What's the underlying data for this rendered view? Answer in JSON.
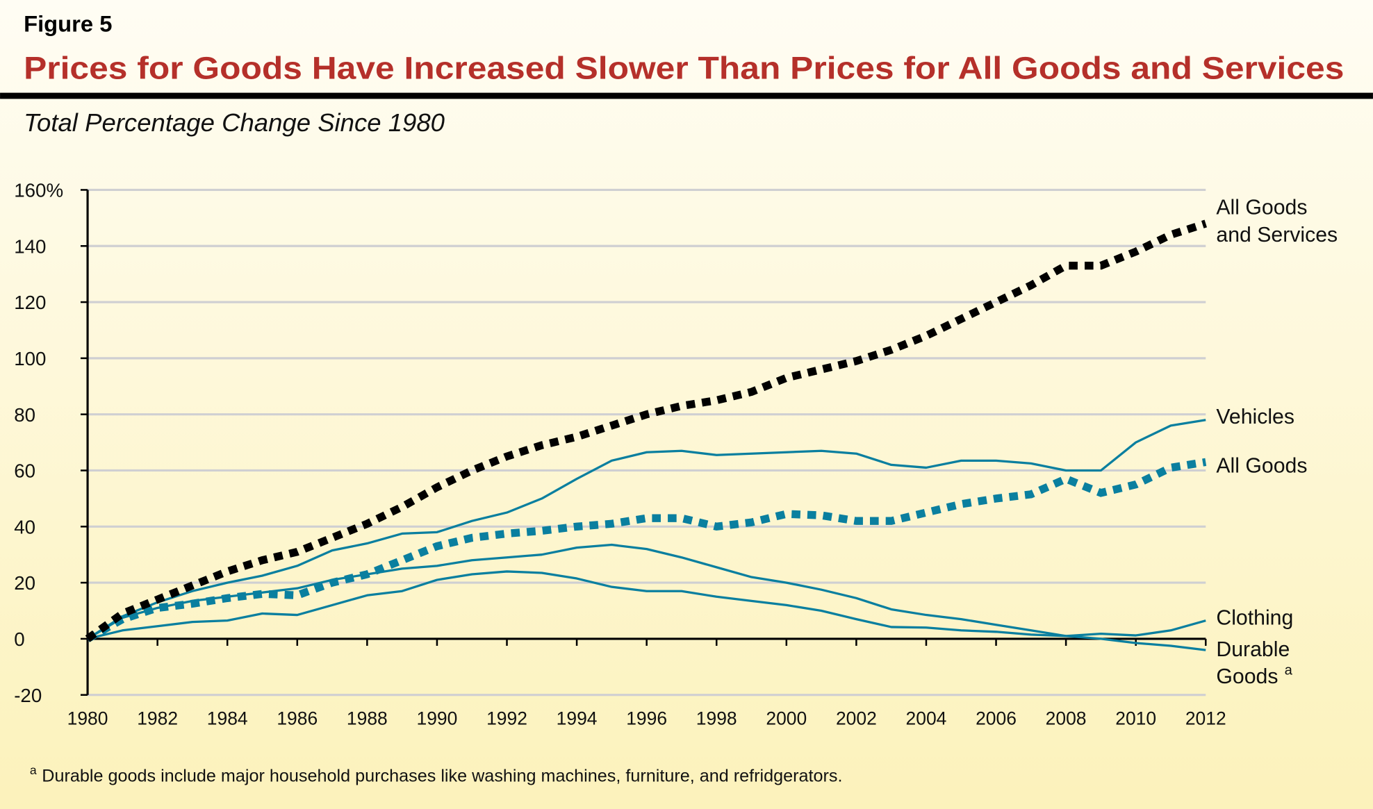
{
  "figure_label": "Figure 5",
  "title": "Prices for Goods Have Increased Slower Than Prices for All Goods and Services",
  "subtitle": "Total Percentage Change Since 1980",
  "footnote_marker": "a",
  "footnote": "Durable goods include major household purchases like washing machines, furniture, and refridgerators.",
  "colors": {
    "title": "#b5302a",
    "series_teal": "#0a7f9f",
    "series_black": "#000000",
    "grid": "#cfcfd2"
  },
  "chart_data": {
    "type": "line",
    "title": "Prices for Goods Have Increased Slower Than Prices for All Goods and Services",
    "ylabel": "Total Percentage Change Since 1980",
    "xlabel": "",
    "ylim": [
      -20,
      160
    ],
    "xlim": [
      1980,
      2012
    ],
    "grid": true,
    "legend": "direct labels at right",
    "y_ticks": [
      "160%",
      "140",
      "120",
      "100",
      "80",
      "60",
      "40",
      "20",
      "0",
      "-20"
    ],
    "y_tick_values": [
      160,
      140,
      120,
      100,
      80,
      60,
      40,
      20,
      0,
      -20
    ],
    "x_ticks": [
      "1980",
      "1982",
      "1984",
      "1986",
      "1988",
      "1990",
      "1992",
      "1994",
      "1996",
      "1998",
      "2000",
      "2002",
      "2004",
      "2006",
      "2008",
      "2010",
      "2012"
    ],
    "x": [
      1980,
      1981,
      1982,
      1983,
      1984,
      1985,
      1986,
      1987,
      1988,
      1989,
      1990,
      1991,
      1992,
      1993,
      1994,
      1995,
      1996,
      1997,
      1998,
      1999,
      2000,
      2001,
      2002,
      2003,
      2004,
      2005,
      2006,
      2007,
      2008,
      2009,
      2010,
      2011,
      2012
    ],
    "series": [
      {
        "name": "All Goods and Services",
        "label_lines": [
          "All Goods",
          "and Services"
        ],
        "style": "dotted-black",
        "values": [
          0,
          9,
          14,
          19,
          24,
          28,
          31,
          36,
          41,
          47,
          54,
          60,
          65,
          69,
          72,
          76,
          80,
          83,
          85,
          88,
          93,
          96,
          99,
          103,
          108,
          114,
          120,
          126,
          133,
          133,
          138,
          144,
          148
        ]
      },
      {
        "name": "Vehicles",
        "label_lines": [
          "Vehicles"
        ],
        "style": "solid-teal",
        "values": [
          0,
          8,
          13,
          17,
          20,
          22.5,
          26,
          31.5,
          34,
          37.5,
          38,
          42,
          45,
          50,
          57,
          63.5,
          66.5,
          67,
          65.5,
          66,
          66.5,
          67,
          66,
          62,
          61,
          63.5,
          63.5,
          62.5,
          60,
          60,
          70,
          76,
          78
        ]
      },
      {
        "name": "All Goods",
        "label_lines": [
          "All Goods"
        ],
        "style": "dotted-teal",
        "values": [
          0,
          7,
          11,
          12.5,
          14.5,
          16,
          15.5,
          20,
          23,
          28,
          33,
          36,
          37.5,
          38.5,
          40,
          41,
          43,
          43,
          40,
          41.5,
          44.5,
          44,
          42,
          42,
          45,
          48,
          50,
          51.5,
          57,
          52,
          55,
          61,
          63
        ]
      },
      {
        "name": "Clothing",
        "label_lines": [
          "Clothing"
        ],
        "style": "solid-teal",
        "values": [
          0,
          3,
          4.5,
          6,
          6.5,
          9,
          8.5,
          12,
          15.5,
          17,
          21,
          23,
          24,
          23.5,
          21.5,
          18.5,
          17,
          17,
          15,
          13.5,
          12,
          10,
          7,
          4.2,
          4,
          3,
          2.5,
          1.5,
          1,
          1.8,
          1.2,
          3,
          6.5
        ]
      },
      {
        "name": "Durable Goods",
        "label_lines": [
          "Durable",
          "Goods"
        ],
        "label_superscript": "a",
        "style": "solid-teal",
        "values": [
          0,
          7.5,
          11,
          13.5,
          15,
          16.5,
          18,
          21,
          23,
          25,
          26,
          28,
          29,
          30,
          32.5,
          33.5,
          32,
          29,
          25.5,
          22,
          20,
          17.5,
          14.5,
          10.5,
          8.5,
          7,
          5,
          3,
          1,
          0,
          -1.5,
          -2.5,
          -4
        ]
      }
    ]
  }
}
